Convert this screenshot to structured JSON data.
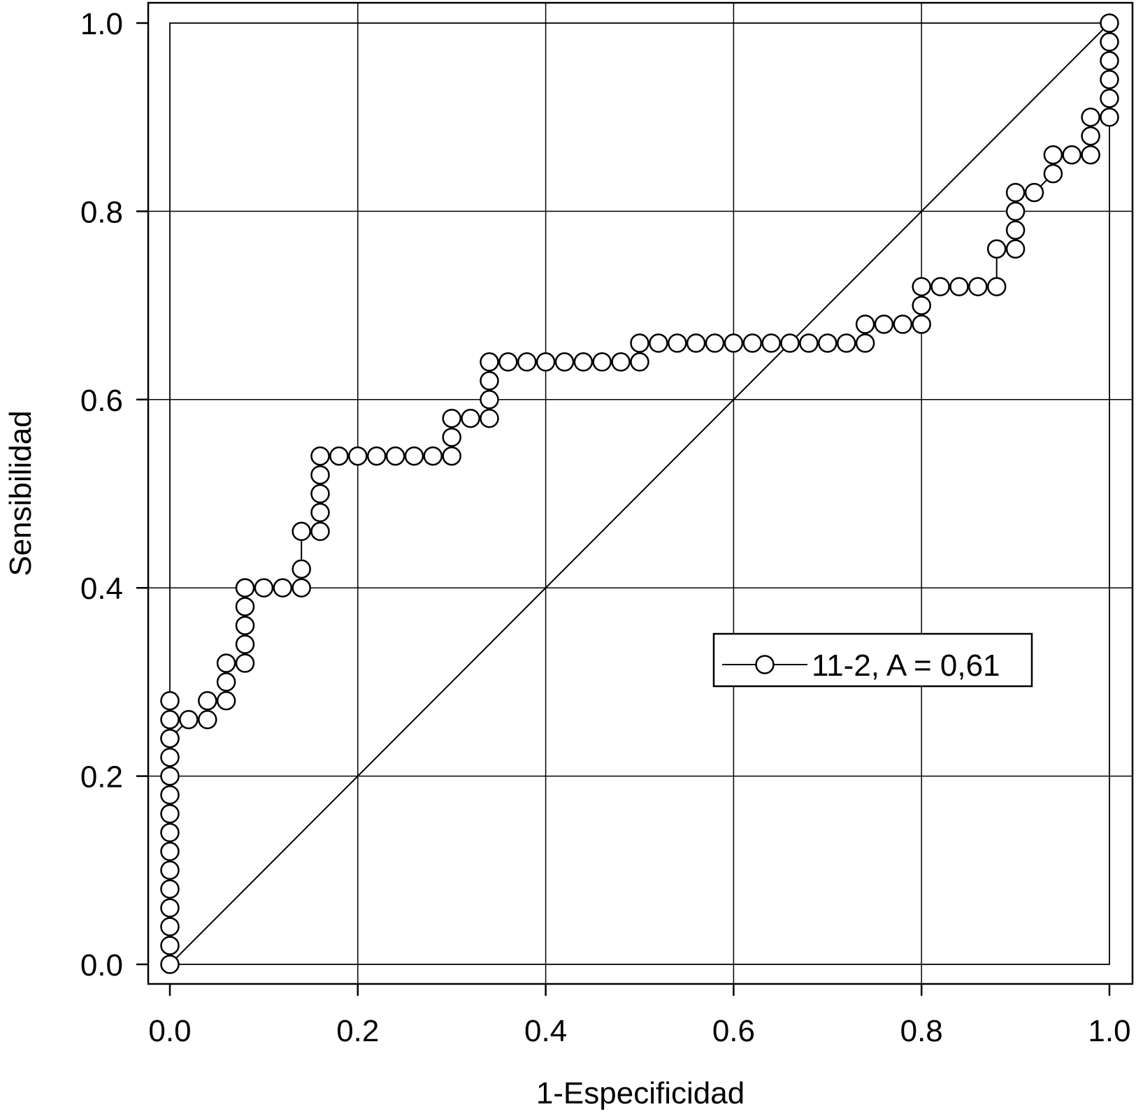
{
  "chart_data": {
    "type": "line",
    "title": "",
    "xlabel": "1-Especificidad",
    "ylabel": "Sensibilidad",
    "xlim": [
      0.0,
      1.0
    ],
    "ylim": [
      0.0,
      1.0
    ],
    "x_ticks": [
      "0.0",
      "0.2",
      "0.4",
      "0.6",
      "0.8",
      "1.0"
    ],
    "y_ticks": [
      "0.0",
      "0.2",
      "0.4",
      "0.6",
      "0.8",
      "1.0"
    ],
    "grid": true,
    "legend_position": "center-right",
    "series": [
      {
        "name": "11-2, A = 0,61",
        "marker": "open-circle",
        "x": [
          0.0,
          0.0,
          0.0,
          0.0,
          0.0,
          0.0,
          0.0,
          0.0,
          0.0,
          0.0,
          0.0,
          0.0,
          0.0,
          0.0,
          0.0,
          0.0,
          0.02,
          0.04,
          0.04,
          0.06,
          0.06,
          0.06,
          0.08,
          0.08,
          0.08,
          0.08,
          0.08,
          0.08,
          0.1,
          0.12,
          0.14,
          0.14,
          0.14,
          0.16,
          0.16,
          0.16,
          0.16,
          0.16,
          0.18,
          0.2,
          0.22,
          0.24,
          0.26,
          0.28,
          0.3,
          0.3,
          0.3,
          0.32,
          0.34,
          0.34,
          0.34,
          0.34,
          0.36,
          0.38,
          0.4,
          0.42,
          0.44,
          0.46,
          0.48,
          0.5,
          0.5,
          0.52,
          0.54,
          0.56,
          0.58,
          0.6,
          0.62,
          0.64,
          0.66,
          0.68,
          0.7,
          0.72,
          0.74,
          0.74,
          0.76,
          0.78,
          0.8,
          0.8,
          0.8,
          0.82,
          0.84,
          0.86,
          0.88,
          0.88,
          0.9,
          0.9,
          0.9,
          0.9,
          0.92,
          0.94,
          0.94,
          0.96,
          0.98,
          0.98,
          0.98,
          1.0,
          1.0,
          1.0,
          1.0,
          1.0,
          1.0
        ],
        "y": [
          0.0,
          0.02,
          0.04,
          0.06,
          0.08,
          0.1,
          0.12,
          0.14,
          0.16,
          0.18,
          0.2,
          0.22,
          0.24,
          0.26,
          0.28,
          0.24,
          0.26,
          0.26,
          0.28,
          0.28,
          0.3,
          0.32,
          0.32,
          0.34,
          0.36,
          0.38,
          0.4,
          0.4,
          0.4,
          0.4,
          0.4,
          0.42,
          0.46,
          0.46,
          0.48,
          0.5,
          0.52,
          0.54,
          0.54,
          0.54,
          0.54,
          0.54,
          0.54,
          0.54,
          0.54,
          0.56,
          0.58,
          0.58,
          0.58,
          0.6,
          0.62,
          0.64,
          0.64,
          0.64,
          0.64,
          0.64,
          0.64,
          0.64,
          0.64,
          0.64,
          0.66,
          0.66,
          0.66,
          0.66,
          0.66,
          0.66,
          0.66,
          0.66,
          0.66,
          0.66,
          0.66,
          0.66,
          0.66,
          0.68,
          0.68,
          0.68,
          0.68,
          0.7,
          0.72,
          0.72,
          0.72,
          0.72,
          0.72,
          0.76,
          0.76,
          0.78,
          0.8,
          0.82,
          0.82,
          0.84,
          0.86,
          0.86,
          0.86,
          0.88,
          0.9,
          0.9,
          0.92,
          0.94,
          0.96,
          0.98,
          1.0
        ]
      },
      {
        "name": "",
        "style": "line",
        "x": [
          0.0,
          1.0
        ],
        "y": [
          0.0,
          1.0
        ]
      }
    ],
    "colors": {
      "line": "#000000",
      "marker_fill": "#ffffff",
      "background": "#ffffff"
    }
  }
}
